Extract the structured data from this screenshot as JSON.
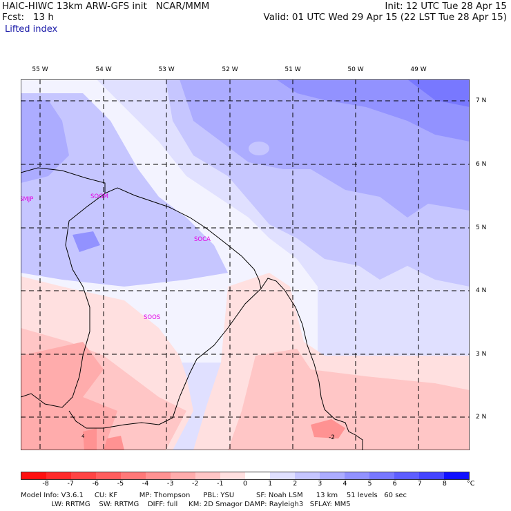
{
  "header": {
    "title": "HAIC-HIWC 13km ARW-GFS init   NCAR/MMM",
    "init": "Init: 12 UTC Tue 28 Apr 15",
    "fcst": "Fcst:   13 h",
    "valid": "Valid: 01 UTC Wed 29 Apr 15 (22 LST Tue 28 Apr 15)",
    "field": "Lifted index"
  },
  "map": {
    "lon_labels": [
      "55 W",
      "54 W",
      "53 W",
      "52 W",
      "51 W",
      "50 W",
      "49 W"
    ],
    "lat_labels": [
      "7 N",
      "6 N",
      "5 N",
      "4 N",
      "3 N",
      "2 N"
    ],
    "stations": [
      "SMJP",
      "SOGM",
      "SOCA",
      "SOOS"
    ],
    "contour_label": "-2",
    "contour_label_small": "4"
  },
  "colorbar": {
    "ticks": [
      "-8",
      "-7",
      "-6",
      "-5",
      "-4",
      "-3",
      "-2",
      "-1",
      "0",
      "1",
      "2",
      "3",
      "4",
      "5",
      "6",
      "7",
      "8"
    ],
    "unit": "°C",
    "colors": [
      "#ff1010",
      "#ff2a2a",
      "#ff4444",
      "#ff5e5e",
      "#ff7878",
      "#ff9292",
      "#ffacac",
      "#ffc6c6",
      "#ffe0e0",
      "#ffffff",
      "#e0e0ff",
      "#c6c6ff",
      "#acacff",
      "#9292ff",
      "#7878ff",
      "#5e5eff",
      "#4444ff",
      "#1010ff"
    ]
  },
  "footer": {
    "line1": "Model Info: V3.6.1     CU: KF          MP: Thompson      PBL: YSU          SF: Noah LSM      13 km    51 levels   60 sec",
    "line2": "              LW: RRTMG    SW: RRTMG    DIFF: full     KM: 2D Smagor DAMP: Rayleigh3   SFLAY: MM5"
  }
}
